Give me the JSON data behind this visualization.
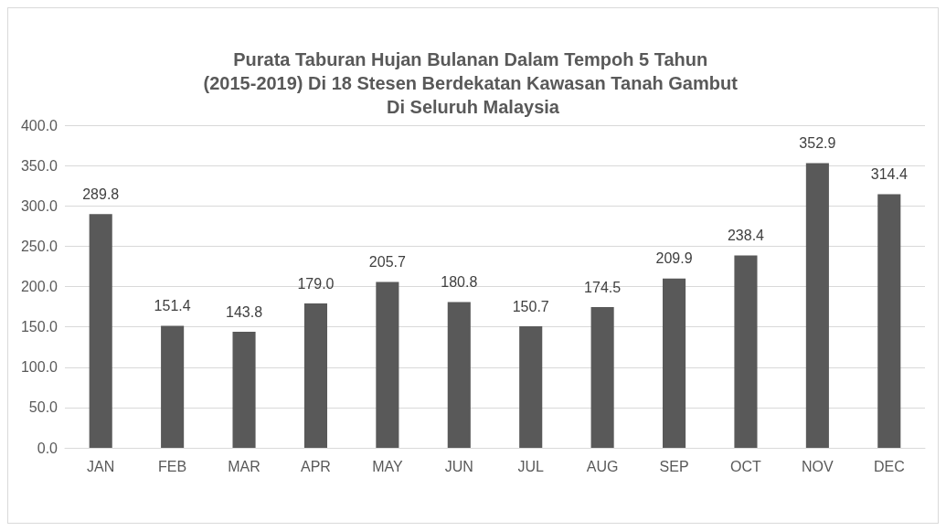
{
  "chart_data": {
    "type": "bar",
    "title": "Purata Taburan Hujan Bulanan Dalam Tempoh 5 Tahun (2015-2019) Di 18 Stesen Berdekatan Kawasan Tanah Gambut Di Seluruh Malaysia",
    "categories": [
      "JAN",
      "FEB",
      "MAR",
      "APR",
      "MAY",
      "JUN",
      "JUL",
      "AUG",
      "SEP",
      "OCT",
      "NOV",
      "DEC"
    ],
    "values": [
      289.8,
      151.4,
      143.8,
      179.0,
      205.7,
      180.8,
      150.7,
      174.5,
      209.9,
      238.4,
      352.9,
      314.4
    ],
    "value_labels": [
      "289.8",
      "151.4",
      "143.8",
      "179.0",
      "205.7",
      "180.8",
      "150.7",
      "174.5",
      "209.9",
      "238.4",
      "352.9",
      "314.4"
    ],
    "color": "#595959",
    "ylim": [
      0,
      400
    ],
    "yticks": [
      {
        "value": 0,
        "label": "0.0"
      },
      {
        "value": 50,
        "label": "50.0"
      },
      {
        "value": 100,
        "label": "100.0"
      },
      {
        "value": 150,
        "label": "150.0"
      },
      {
        "value": 200,
        "label": "200.0"
      },
      {
        "value": 250,
        "label": "250.0"
      },
      {
        "value": 300,
        "label": "300.0"
      },
      {
        "value": 350,
        "label": "350.0"
      },
      {
        "value": 400,
        "label": "400.0"
      }
    ],
    "grid": true
  }
}
